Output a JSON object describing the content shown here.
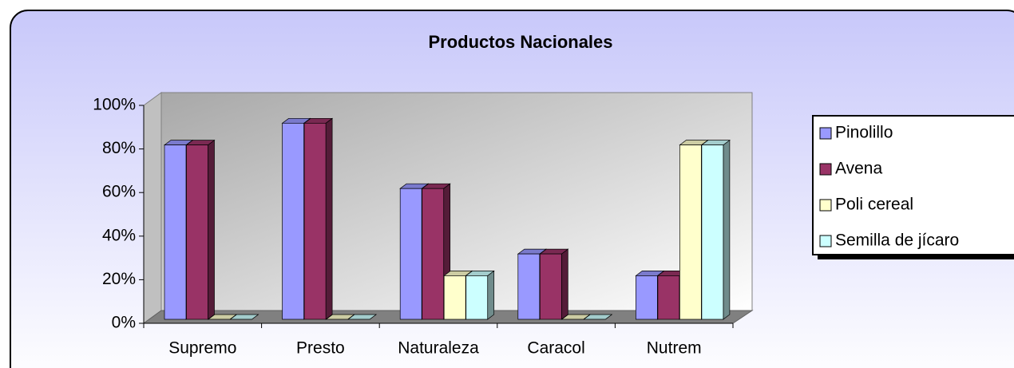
{
  "chart_data": {
    "type": "bar",
    "title": "Productos Nacionales",
    "categories": [
      "Supremo",
      "Presto",
      "Naturaleza",
      "Caracol",
      "Nutrem"
    ],
    "series": [
      {
        "name": "Pinolillo",
        "color": "#9999ff",
        "values": [
          80,
          90,
          60,
          30,
          20
        ]
      },
      {
        "name": "Avena",
        "color": "#993366",
        "values": [
          80,
          90,
          60,
          30,
          20
        ]
      },
      {
        "name": "Poli cereal",
        "color": "#ffffcc",
        "values": [
          0,
          0,
          20,
          0,
          80
        ]
      },
      {
        "name": "Semilla de jícaro",
        "color": "#ccffff",
        "values": [
          0,
          0,
          20,
          0,
          80
        ]
      }
    ],
    "ylim": [
      0,
      100
    ],
    "yticks": [
      {
        "value": 0,
        "label": "0%"
      },
      {
        "value": 20,
        "label": "20%"
      },
      {
        "value": 40,
        "label": "40%"
      },
      {
        "value": 60,
        "label": "60%"
      },
      {
        "value": 80,
        "label": "80%"
      },
      {
        "value": 100,
        "label": "100%"
      }
    ],
    "legend": "right"
  }
}
